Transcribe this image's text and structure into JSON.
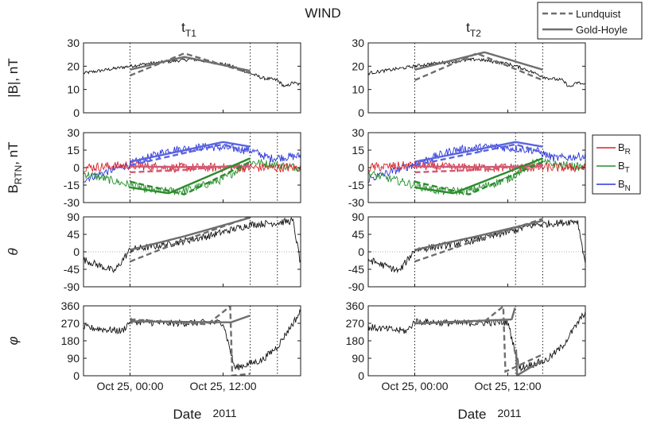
{
  "figure": {
    "title": "WIND",
    "columns": [
      {
        "label": "t",
        "sub": "T1"
      },
      {
        "label": "t",
        "sub": "T2"
      }
    ],
    "xlabel": "Date",
    "year": "2011",
    "xticks": [
      "Oct 25, 00:00",
      "Oct 25, 12:00"
    ]
  },
  "colors": {
    "data": "#111111",
    "model": "#6e6e6e",
    "br": "#d9232a",
    "bt": "#23902b",
    "bn": "#2b36d9",
    "br_model": "#d05a78",
    "bt_model": "#2e8b2e",
    "bn_model": "#5b64e0"
  },
  "legend_top": {
    "items": [
      {
        "name": "Lundquist",
        "style": "dashed"
      },
      {
        "name": "Gold-Hoyle",
        "style": "solid"
      }
    ]
  },
  "legend_side": {
    "items": [
      {
        "base": "B",
        "sub": "R",
        "color": "#d9232a"
      },
      {
        "base": "B",
        "sub": "T",
        "color": "#23902b"
      },
      {
        "base": "B",
        "sub": "N",
        "color": "#2b36d9"
      }
    ]
  },
  "chart_data": {
    "type": "line",
    "x_units": "hours from Oct 25, 2011 00:00",
    "xlim": [
      -6,
      22
    ],
    "rows": [
      {
        "id": "B",
        "ylabel": "|B|, nT",
        "ylim": [
          0,
          30
        ],
        "yticks": [
          "0",
          "10",
          "20",
          "30"
        ]
      },
      {
        "id": "BRTN",
        "ylabel_base": "B",
        "ylabel_sub": "RTN",
        "ylabel_tail": ", nT",
        "ylim": [
          -30,
          30
        ],
        "yticks": [
          "-30",
          "-15",
          "0",
          "15",
          "30"
        ]
      },
      {
        "id": "theta",
        "ylabel": "θ",
        "ylim": [
          -90,
          90
        ],
        "yticks": [
          "-90",
          "-45",
          "0",
          "45",
          "90"
        ]
      },
      {
        "id": "phi",
        "ylabel": "φ",
        "ylim": [
          0,
          360
        ],
        "yticks": [
          "0",
          "90",
          "180",
          "270",
          "360"
        ]
      }
    ],
    "columns": [
      {
        "name": "tT1",
        "vlines": [
          0,
          15.5,
          19.0
        ],
        "fit_range": [
          0,
          15.5
        ],
        "B": {
          "lundquist": [
            [
              0,
              16
            ],
            [
              7,
              25.5
            ],
            [
              15.5,
              17
            ]
          ],
          "goldhoyle": [
            [
              0,
              18.5
            ],
            [
              7,
              24
            ],
            [
              15.5,
              18
            ]
          ]
        },
        "BRTN": {
          "BR_lundquist": [
            [
              0,
              -4
            ],
            [
              7,
              -2
            ],
            [
              15.5,
              3
            ]
          ],
          "BR_goldhoyle": [
            [
              0,
              1
            ],
            [
              7,
              0.5
            ],
            [
              15.5,
              1
            ]
          ],
          "BT_lundquist": [
            [
              0,
              -12
            ],
            [
              7,
              -23
            ],
            [
              15.5,
              5
            ]
          ],
          "BT_goldhoyle": [
            [
              0,
              -17
            ],
            [
              5,
              -22
            ],
            [
              15.5,
              8
            ]
          ],
          "BN_lundquist": [
            [
              0,
              2
            ],
            [
              12,
              20
            ],
            [
              15.5,
              13
            ]
          ],
          "BN_goldhoyle": [
            [
              0,
              5
            ],
            [
              12,
              22
            ],
            [
              15.5,
              18
            ]
          ]
        },
        "theta": {
          "lundquist": [
            [
              0,
              -25
            ],
            [
              7,
              30
            ],
            [
              15.5,
              90
            ]
          ],
          "goldhoyle": [
            [
              0,
              5
            ],
            [
              7,
              40
            ],
            [
              15.5,
              88
            ]
          ]
        },
        "phi": {
          "lundquist": [
            [
              0,
              290
            ],
            [
              10,
              265
            ],
            [
              13,
              360
            ],
            [
              13.1,
              0
            ],
            [
              15.5,
              10
            ]
          ],
          "goldhoyle": [
            [
              0,
              280
            ],
            [
              13,
              275
            ],
            [
              15.5,
              310
            ]
          ]
        }
      },
      {
        "name": "tT2",
        "vlines": [
          0,
          13.0,
          16.5
        ],
        "fit_range": [
          0,
          16.5
        ],
        "B": {
          "lundquist": [
            [
              0,
              14
            ],
            [
              8,
              25.5
            ],
            [
              16.5,
              14
            ]
          ],
          "goldhoyle": [
            [
              0,
              18.5
            ],
            [
              9,
              26
            ],
            [
              16.5,
              18.5
            ]
          ]
        },
        "BRTN": {
          "BR_lundquist": [
            [
              0,
              -4
            ],
            [
              8,
              -2
            ],
            [
              16.5,
              3
            ]
          ],
          "BR_goldhoyle": [
            [
              0,
              1
            ],
            [
              8,
              0.5
            ],
            [
              16.5,
              1
            ]
          ],
          "BT_lundquist": [
            [
              0,
              -12
            ],
            [
              7,
              -23
            ],
            [
              16.5,
              5
            ]
          ],
          "BT_goldhoyle": [
            [
              0,
              -17
            ],
            [
              5,
              -22
            ],
            [
              16.5,
              8
            ]
          ],
          "BN_lundquist": [
            [
              0,
              2
            ],
            [
              13,
              20
            ],
            [
              16.5,
              13
            ]
          ],
          "BN_goldhoyle": [
            [
              0,
              5
            ],
            [
              13,
              22
            ],
            [
              16.5,
              18
            ]
          ]
        },
        "theta": {
          "lundquist": [
            [
              0,
              -25
            ],
            [
              8,
              30
            ],
            [
              16.5,
              85
            ]
          ],
          "goldhoyle": [
            [
              0,
              5
            ],
            [
              8,
              40
            ],
            [
              16.5,
              80
            ]
          ]
        },
        "phi": {
          "lundquist": [
            [
              0,
              270
            ],
            [
              9,
              280
            ],
            [
              11.5,
              360
            ],
            [
              11.6,
              20
            ],
            [
              16.5,
              110
            ]
          ],
          "goldhoyle": [
            [
              0,
              270
            ],
            [
              12.5,
              290
            ],
            [
              13,
              360
            ],
            [
              13.1,
              0
            ],
            [
              16.5,
              80
            ]
          ]
        }
      }
    ],
    "observed": {
      "B_mean": [
        [
          -6,
          17
        ],
        [
          -4,
          18
        ],
        [
          -2,
          19
        ],
        [
          0,
          20
        ],
        [
          2,
          21
        ],
        [
          5,
          22
        ],
        [
          8,
          23
        ],
        [
          10,
          22
        ],
        [
          12,
          21
        ],
        [
          14,
          19
        ],
        [
          15.5,
          17
        ],
        [
          17,
          15
        ],
        [
          19,
          14
        ],
        [
          20,
          11
        ],
        [
          21,
          13
        ],
        [
          22,
          12
        ]
      ],
      "BR_mean": [
        [
          -6,
          0
        ],
        [
          0,
          2
        ],
        [
          5,
          0
        ],
        [
          10,
          0
        ],
        [
          15.5,
          0
        ],
        [
          22,
          0
        ]
      ],
      "BT_mean": [
        [
          -6,
          -5
        ],
        [
          0,
          -15
        ],
        [
          3,
          -20
        ],
        [
          7,
          -20
        ],
        [
          12,
          -10
        ],
        [
          15.5,
          5
        ],
        [
          18,
          3
        ],
        [
          22,
          0
        ]
      ],
      "BN_mean": [
        [
          -6,
          -10
        ],
        [
          0,
          3
        ],
        [
          5,
          15
        ],
        [
          10,
          18
        ],
        [
          15.5,
          15
        ],
        [
          18,
          8
        ],
        [
          22,
          10
        ]
      ],
      "theta_mean": [
        [
          -6,
          -20
        ],
        [
          -2,
          -50
        ],
        [
          0,
          5
        ],
        [
          5,
          20
        ],
        [
          10,
          40
        ],
        [
          15.5,
          70
        ],
        [
          19,
          75
        ],
        [
          21,
          80
        ],
        [
          22,
          -30
        ]
      ],
      "phi_mean": [
        [
          -6,
          250
        ],
        [
          -1,
          230
        ],
        [
          0,
          280
        ],
        [
          5,
          270
        ],
        [
          12,
          275
        ],
        [
          13.5,
          40
        ],
        [
          17,
          80
        ],
        [
          19,
          150
        ],
        [
          21,
          270
        ],
        [
          22,
          330
        ]
      ]
    }
  }
}
